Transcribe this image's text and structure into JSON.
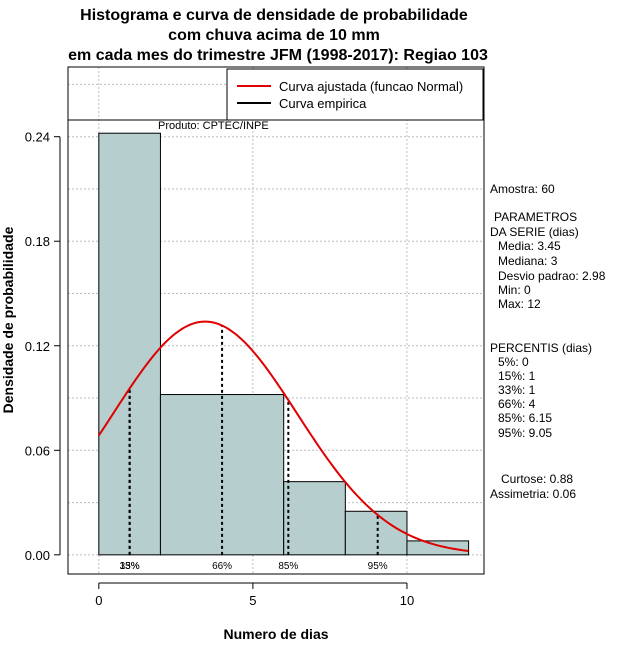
{
  "chart_data": {
    "type": "bar",
    "title_lines": [
      "Histograma e curva de densidade de probabilidade",
      "com chuva acima de 10 mm",
      "em cada mes do trimestre JFM (1998-2017): Regiao 103"
    ],
    "xlabel": "Numero de dias",
    "ylabel": "Densidade de probabilidade",
    "xlim": [
      -1,
      12.5
    ],
    "ylim": [
      -0.011,
      0.28
    ],
    "x_ticks": [
      0,
      5,
      10
    ],
    "y_ticks": [
      0.0,
      0.06,
      0.12,
      0.18,
      0.24
    ],
    "y_tick_labels": [
      "0.00",
      "0.06",
      "0.12",
      "0.18",
      "0.24"
    ],
    "bins": [
      {
        "x0": 0,
        "x1": 2,
        "density": 0.242
      },
      {
        "x0": 2,
        "x1": 6,
        "density": 0.092
      },
      {
        "x0": 6,
        "x1": 8,
        "density": 0.042
      },
      {
        "x0": 8,
        "x1": 10,
        "density": 0.025
      },
      {
        "x0": 10,
        "x1": 12,
        "density": 0.008
      }
    ],
    "bar_color": "#b6cfce",
    "normal_curve": {
      "mean": 3.45,
      "sd": 2.98,
      "color": "#e00000",
      "x_from": 0,
      "x_to": 12
    },
    "percentile_lines": [
      {
        "label": "15%",
        "x": 1
      },
      {
        "label": "33%",
        "x": 1
      },
      {
        "label": "66%",
        "x": 4
      },
      {
        "label": "85%",
        "x": 6.15
      },
      {
        "label": "95%",
        "x": 9.05
      }
    ],
    "percentile_labels": [
      {
        "text": "15%",
        "x": 1
      },
      {
        "text": "33%",
        "x": 1
      },
      {
        "text": "66%",
        "x": 4
      },
      {
        "text": "85%",
        "x": 6.15
      },
      {
        "text": "95%",
        "x": 9.05
      }
    ],
    "legend": {
      "position": "top-right",
      "entries": [
        {
          "label": "Curva ajustada (funcao Normal)",
          "color": "#e00000"
        },
        {
          "label": "Curva empirica",
          "color": "#000000"
        }
      ]
    },
    "annotation": "Produto: CPTEC/INPE",
    "stats_lines": [
      "Amostra: 60",
      " PARAMETROS",
      "DA SERIE (dias)",
      "Media: 3.45",
      "Mediana: 3",
      "Desvio padrao: 2.98",
      "Min: 0",
      "Max: 12",
      "PERCENTIS (dias)",
      "5%: 0",
      "15%: 1",
      "33%: 1",
      "66%: 4",
      "85%: 6.15",
      "95%: 9.05",
      "Curtose: 0.88",
      "Assimetria: 0.06"
    ]
  }
}
